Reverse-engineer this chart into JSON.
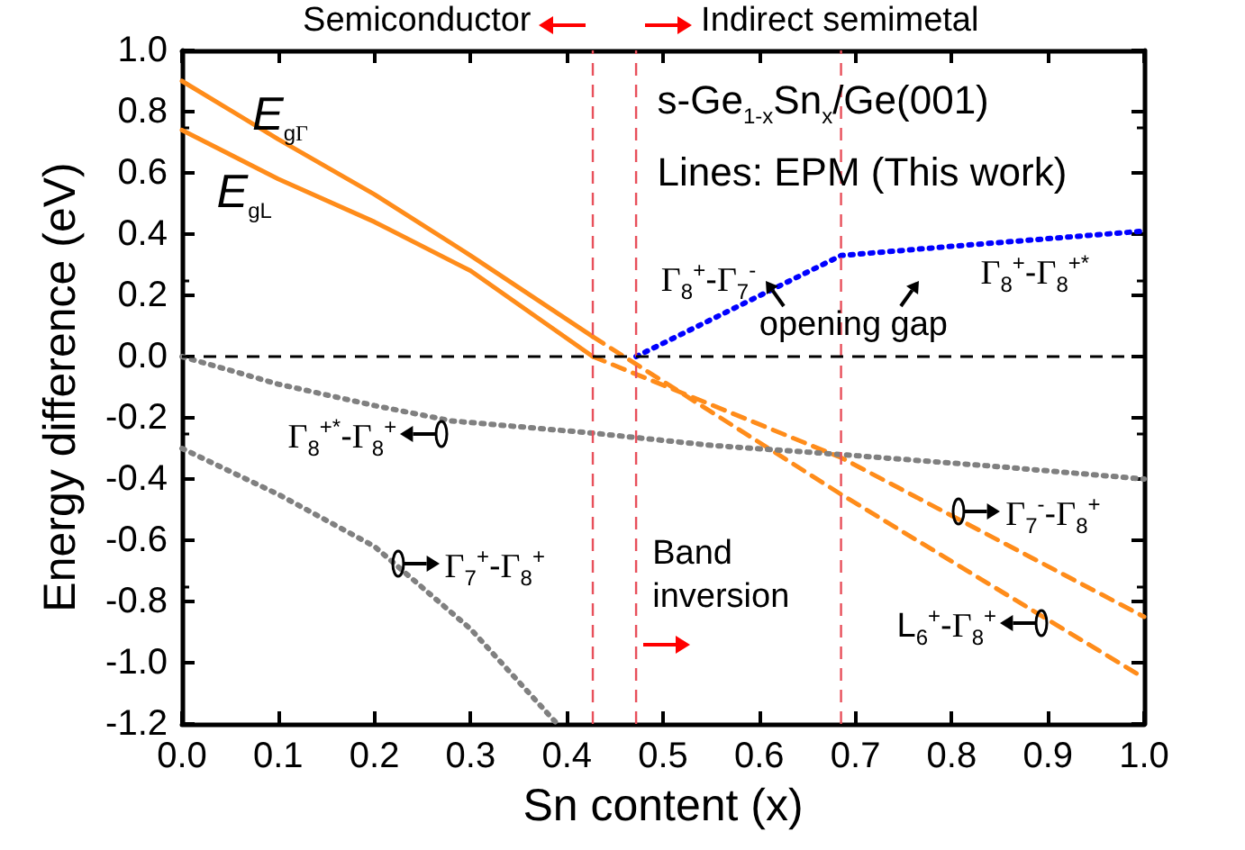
{
  "chart_data": {
    "type": "line",
    "xlabel": "Sn content (x)",
    "ylabel": "Energy difference (eV)",
    "xlim": [
      0,
      1
    ],
    "ylim": [
      -1.2,
      1.0
    ],
    "xticks": [
      {
        "value": 0,
        "label": "0.0"
      },
      {
        "value": 0.1,
        "label": "0.1"
      },
      {
        "value": 0.2,
        "label": "0.2"
      },
      {
        "value": 0.3,
        "label": "0.3"
      },
      {
        "value": 0.4,
        "label": "0.4"
      },
      {
        "value": 0.5,
        "label": "0.5"
      },
      {
        "value": 0.6,
        "label": "0.6"
      },
      {
        "value": 0.7,
        "label": "0.7"
      },
      {
        "value": 0.8,
        "label": "0.8"
      },
      {
        "value": 0.9,
        "label": "0.9"
      },
      {
        "value": 1,
        "label": "1.0"
      }
    ],
    "yticks": [
      {
        "value": -1.2,
        "label": "-1.2"
      },
      {
        "value": -1,
        "label": "-1.0"
      },
      {
        "value": -0.8,
        "label": "-0.8"
      },
      {
        "value": -0.6,
        "label": "-0.6"
      },
      {
        "value": -0.4,
        "label": "-0.4"
      },
      {
        "value": -0.2,
        "label": "-0.2"
      },
      {
        "value": 0,
        "label": "0.0"
      },
      {
        "value": 0.2,
        "label": "0.2"
      },
      {
        "value": 0.4,
        "label": "0.4"
      },
      {
        "value": 0.6,
        "label": "0.6"
      },
      {
        "value": 0.8,
        "label": "0.8"
      },
      {
        "value": 1,
        "label": "1.0"
      }
    ],
    "grid": false,
    "marker": "none",
    "series": [
      {
        "color": "#ff8c1a",
        "line_style": "solid",
        "x": [
          0,
          0.1,
          0.2,
          0.3,
          0.427
        ],
        "values": [
          0.9,
          0.71,
          0.53,
          0.33,
          0.065
        ]
      },
      {
        "color": "#ff8c1a",
        "line_style": "solid",
        "x": [
          0,
          0.1,
          0.2,
          0.3,
          0.427
        ],
        "values": [
          0.74,
          0.58,
          0.44,
          0.28,
          0.0
        ]
      },
      {
        "color": "#ff8c1a",
        "line_style": "dashed",
        "x": [
          0.427,
          0.685,
          1.0
        ],
        "values": [
          0.065,
          -0.45,
          -1.05
        ]
      },
      {
        "color": "#ff8c1a",
        "line_style": "dashed",
        "x": [
          0.427,
          0.685,
          1.0
        ],
        "values": [
          0.0,
          -0.33,
          -0.85
        ]
      },
      {
        "color": "#0000ff",
        "line_style": "dotted",
        "x": [
          0.472,
          0.685,
          0.8,
          0.9,
          1.0
        ],
        "values": [
          0.0,
          0.33,
          0.36,
          0.385,
          0.41
        ]
      },
      {
        "color": "#808080",
        "line_style": "dotted",
        "x": [
          0,
          0.1,
          0.2,
          0.28,
          0.427,
          0.55,
          0.685,
          0.85,
          1.0
        ],
        "values": [
          0,
          -0.09,
          -0.16,
          -0.21,
          -0.25,
          -0.29,
          -0.32,
          -0.36,
          -0.4
        ]
      },
      {
        "color": "#808080",
        "line_style": "dotted",
        "x": [
          0,
          0.1,
          0.2,
          0.3,
          0.39
        ],
        "values": [
          -0.3,
          -0.45,
          -0.62,
          -0.89,
          -1.2
        ]
      }
    ],
    "ref_lines": [
      {
        "axis": "x",
        "value": 0.427,
        "label": "Semiconductor",
        "color": "#e8505b",
        "line_style": "dashed"
      },
      {
        "axis": "x",
        "value": 0.472,
        "label": "Indirect semimetal",
        "color": "#e8505b",
        "line_style": "dashed"
      },
      {
        "axis": "x",
        "value": 0.685,
        "label": null,
        "color": "#e8505b",
        "line_style": "dashed"
      },
      {
        "axis": "y",
        "value": 0,
        "label": null,
        "color": "#000000",
        "line_style": "dashed"
      }
    ],
    "annotations": [
      "s-Ge$_{1-x}$Sn$_{x}$/Ge(001)",
      "Lines: EPM (This work)",
      "E$_{gΓ}$",
      "E$_{gL}$",
      "Γ$_{8}$$^{+}$-Γ$_{7}$$^{-}$",
      "opening gap",
      "Γ$_{8}$$^{+}$-Γ$_{8}$$^{+*}$",
      "Γ$_{8}$$^{+*}$-Γ$_{8}$$^{+}$",
      "Γ$_{7}$$^{+}$-Γ$_{8}$$^{+}$",
      "Γ$_{7}$$^{-}$-Γ$_{8}$$^{+}$",
      "L$_{6}$$^{+}$-Γ$_{8}$$^{+}$",
      "Band inversion"
    ]
  }
}
